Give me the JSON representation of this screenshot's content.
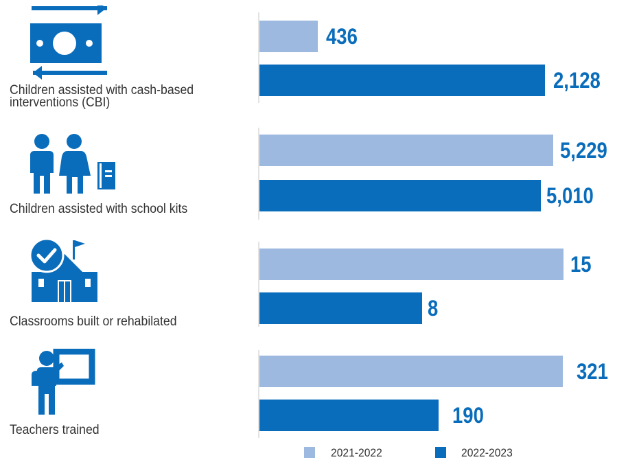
{
  "colors": {
    "series_2021": "#9db9e0",
    "series_2022": "#0a6dbb",
    "icon": "#0a6dbb",
    "text": "#333333"
  },
  "chart_data": {
    "type": "bar",
    "orientation": "horizontal",
    "categories": [
      "Children assisted with cash-based interventions (CBI)",
      "Children assisted with school kits",
      "Classrooms built or rehabilated",
      "Teachers trained"
    ],
    "icons": [
      "cash-transfer-icon",
      "children-book-icon",
      "school-check-icon",
      "teacher-board-icon"
    ],
    "series": [
      {
        "name": "2021-2022",
        "values": [
          436,
          5229,
          15,
          321
        ],
        "labels": [
          "436",
          "5,229",
          "15",
          "321"
        ]
      },
      {
        "name": "2022-2023",
        "values": [
          2128,
          5010,
          8,
          190
        ],
        "labels": [
          "2,128",
          "5,010",
          "8",
          "190"
        ]
      }
    ],
    "xlim_per_category": [
      [
        0,
        2436
      ],
      [
        0,
        5812
      ],
      [
        0,
        16.1
      ],
      [
        0,
        346
      ]
    ],
    "legend_position": "bottom",
    "grid": false
  },
  "legend": {
    "items": [
      "2021-2022",
      "2022-2023"
    ]
  }
}
